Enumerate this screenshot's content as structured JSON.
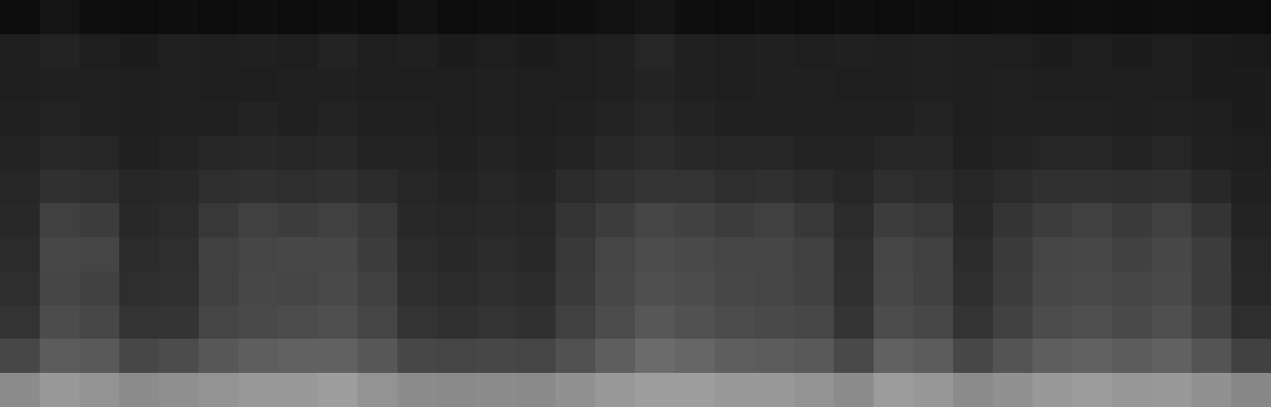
{
  "chart_data": {
    "type": "heatmap",
    "tick_labels": false,
    "color": "gray",
    "color_range": [
      0,
      1
    ],
    "cells": [
      [
        0.05,
        0.08,
        0.06,
        0.05,
        0.06,
        0.05,
        0.06,
        0.05,
        0.06,
        0.05,
        0.07,
        0.05,
        0.06,
        0.05,
        0.06,
        0.07,
        0.08,
        0.06,
        0.05,
        0.06,
        0.05,
        0.06,
        0.05,
        0.06,
        0.05,
        0.06,
        0.05,
        0.06,
        0.05,
        0.06,
        0.05,
        0.05
      ],
      [
        0.12,
        0.14,
        0.12,
        0.11,
        0.13,
        0.12,
        0.13,
        0.12,
        0.14,
        0.12,
        0.13,
        0.11,
        0.12,
        0.11,
        0.12,
        0.13,
        0.15,
        0.13,
        0.12,
        0.13,
        0.12,
        0.13,
        0.12,
        0.13,
        0.12,
        0.12,
        0.11,
        0.12,
        0.11,
        0.12,
        0.11,
        0.1
      ],
      [
        0.12,
        0.13,
        0.13,
        0.12,
        0.13,
        0.12,
        0.12,
        0.13,
        0.13,
        0.12,
        0.12,
        0.12,
        0.13,
        0.12,
        0.12,
        0.13,
        0.14,
        0.13,
        0.12,
        0.13,
        0.13,
        0.12,
        0.12,
        0.13,
        0.12,
        0.13,
        0.12,
        0.12,
        0.12,
        0.12,
        0.11,
        0.11
      ],
      [
        0.13,
        0.14,
        0.13,
        0.12,
        0.13,
        0.13,
        0.14,
        0.13,
        0.14,
        0.13,
        0.13,
        0.12,
        0.13,
        0.12,
        0.13,
        0.14,
        0.15,
        0.14,
        0.13,
        0.13,
        0.13,
        0.13,
        0.13,
        0.14,
        0.12,
        0.13,
        0.13,
        0.13,
        0.12,
        0.13,
        0.12,
        0.11
      ],
      [
        0.14,
        0.16,
        0.15,
        0.13,
        0.14,
        0.15,
        0.16,
        0.15,
        0.16,
        0.14,
        0.14,
        0.13,
        0.14,
        0.13,
        0.14,
        0.16,
        0.17,
        0.16,
        0.15,
        0.15,
        0.14,
        0.14,
        0.15,
        0.15,
        0.13,
        0.14,
        0.15,
        0.15,
        0.14,
        0.15,
        0.13,
        0.12
      ],
      [
        0.15,
        0.19,
        0.18,
        0.15,
        0.16,
        0.18,
        0.19,
        0.18,
        0.19,
        0.17,
        0.15,
        0.14,
        0.15,
        0.14,
        0.17,
        0.19,
        0.21,
        0.2,
        0.18,
        0.19,
        0.17,
        0.15,
        0.18,
        0.17,
        0.15,
        0.17,
        0.19,
        0.19,
        0.18,
        0.19,
        0.16,
        0.13
      ],
      [
        0.16,
        0.25,
        0.24,
        0.16,
        0.17,
        0.22,
        0.25,
        0.24,
        0.25,
        0.22,
        0.16,
        0.15,
        0.16,
        0.15,
        0.2,
        0.24,
        0.27,
        0.26,
        0.24,
        0.25,
        0.22,
        0.17,
        0.24,
        0.22,
        0.16,
        0.21,
        0.24,
        0.25,
        0.23,
        0.25,
        0.21,
        0.14
      ],
      [
        0.17,
        0.28,
        0.27,
        0.17,
        0.18,
        0.25,
        0.27,
        0.28,
        0.28,
        0.24,
        0.17,
        0.16,
        0.17,
        0.16,
        0.22,
        0.27,
        0.3,
        0.29,
        0.27,
        0.27,
        0.25,
        0.18,
        0.27,
        0.25,
        0.17,
        0.23,
        0.27,
        0.28,
        0.26,
        0.28,
        0.24,
        0.15
      ],
      [
        0.18,
        0.27,
        0.26,
        0.18,
        0.19,
        0.25,
        0.28,
        0.27,
        0.29,
        0.25,
        0.18,
        0.17,
        0.18,
        0.17,
        0.23,
        0.28,
        0.31,
        0.3,
        0.28,
        0.27,
        0.26,
        0.19,
        0.28,
        0.26,
        0.18,
        0.24,
        0.28,
        0.29,
        0.27,
        0.29,
        0.24,
        0.16
      ],
      [
        0.2,
        0.3,
        0.28,
        0.2,
        0.21,
        0.27,
        0.29,
        0.3,
        0.31,
        0.27,
        0.2,
        0.19,
        0.2,
        0.19,
        0.25,
        0.3,
        0.34,
        0.32,
        0.3,
        0.29,
        0.28,
        0.21,
        0.3,
        0.28,
        0.2,
        0.26,
        0.3,
        0.31,
        0.29,
        0.31,
        0.26,
        0.18
      ],
      [
        0.28,
        0.36,
        0.35,
        0.28,
        0.3,
        0.34,
        0.37,
        0.38,
        0.38,
        0.34,
        0.28,
        0.27,
        0.28,
        0.27,
        0.32,
        0.37,
        0.42,
        0.4,
        0.37,
        0.36,
        0.35,
        0.29,
        0.38,
        0.36,
        0.28,
        0.33,
        0.37,
        0.38,
        0.36,
        0.38,
        0.33,
        0.26
      ],
      [
        0.55,
        0.6,
        0.58,
        0.55,
        0.56,
        0.58,
        0.6,
        0.6,
        0.62,
        0.58,
        0.55,
        0.54,
        0.55,
        0.54,
        0.57,
        0.6,
        0.62,
        0.62,
        0.6,
        0.6,
        0.58,
        0.55,
        0.61,
        0.59,
        0.55,
        0.57,
        0.6,
        0.61,
        0.59,
        0.6,
        0.57,
        0.53
      ]
    ]
  }
}
